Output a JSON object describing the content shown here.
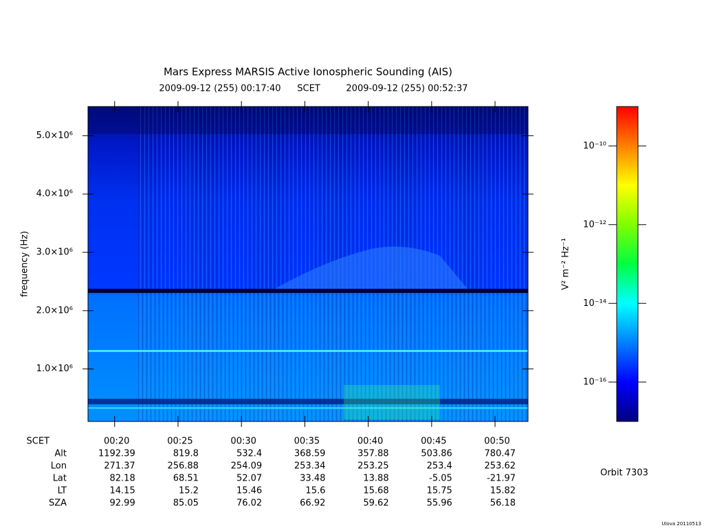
{
  "chart_data": {
    "type": "spectrogram",
    "title": "Mars Express MARSIS Active Ionospheric Sounding (AIS)",
    "start_time": "2009-09-12 (255) 00:17:40",
    "time_system": "SCET",
    "end_time": "2009-09-12 (255) 00:52:37",
    "y_label": "frequency (Hz)",
    "xlim": [
      17.9,
      52.6
    ],
    "xticks": [
      {
        "value": 20,
        "label": "00:20"
      },
      {
        "value": 25,
        "label": "00:25"
      },
      {
        "value": 30,
        "label": "00:30"
      },
      {
        "value": 35,
        "label": "00:35"
      },
      {
        "value": 40,
        "label": "00:40"
      },
      {
        "value": 45,
        "label": "00:45"
      },
      {
        "value": 50,
        "label": "00:50"
      }
    ],
    "ylim": [
      100000,
      5500000
    ],
    "yticks": [
      {
        "value": 1000000,
        "label": "1.0×10⁶"
      },
      {
        "value": 2000000,
        "label": "2.0×10⁶"
      },
      {
        "value": 3000000,
        "label": "3.0×10⁶"
      },
      {
        "value": 4000000,
        "label": "4.0×10⁶"
      },
      {
        "value": 5000000,
        "label": "5.0×10⁶"
      }
    ],
    "colorbar": {
      "label": "V² m⁻² Hz⁻¹",
      "log_scale": true,
      "lim": [
        1e-17,
        1e-09
      ],
      "ticks": [
        {
          "value": 1e-16,
          "label": "10⁻¹⁶"
        },
        {
          "value": 1e-14,
          "label": "10⁻¹⁴"
        },
        {
          "value": 1e-12,
          "label": "10⁻¹²"
        },
        {
          "value": 1e-10,
          "label": "10⁻¹⁰"
        }
      ],
      "colormap": [
        "#000080",
        "#0000ff",
        "#0080ff",
        "#00ffff",
        "#00ff40",
        "#80ff00",
        "#ffff00",
        "#ff8000",
        "#ff0000"
      ]
    },
    "ephemeris": {
      "time_label": "SCET",
      "rows": [
        {
          "name": "Alt",
          "values": [
            1192.39,
            819.8,
            532.4,
            368.59,
            357.88,
            503.86,
            780.47
          ]
        },
        {
          "name": "Lon",
          "values": [
            271.37,
            256.88,
            254.09,
            253.34,
            253.25,
            253.4,
            253.62
          ]
        },
        {
          "name": "Lat",
          "values": [
            82.18,
            68.51,
            52.07,
            33.48,
            13.88,
            -5.05,
            -21.97
          ]
        },
        {
          "name": "LT",
          "values": [
            14.15,
            15.2,
            15.46,
            15.6,
            15.68,
            15.75,
            15.82
          ]
        },
        {
          "name": "SZA",
          "values": [
            92.99,
            85.05,
            76.02,
            66.92,
            59.62,
            55.96,
            56.18
          ]
        }
      ]
    },
    "orbit": "Orbit 7303",
    "footer": "Ulova 20110513"
  }
}
